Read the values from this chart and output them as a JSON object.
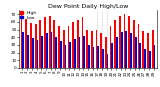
{
  "title": "Dew Point Daily High/Low",
  "ylim": [
    0,
    75
  ],
  "yticks": [
    0,
    10,
    20,
    30,
    40,
    50,
    60,
    70
  ],
  "high_color": "#ff0000",
  "low_color": "#0000cc",
  "background_color": "#ffffff",
  "highs": [
    73,
    64,
    59,
    57,
    62,
    67,
    68,
    62,
    55,
    50,
    55,
    60,
    63,
    66,
    50,
    48,
    50,
    45,
    40,
    55,
    62,
    68,
    70,
    68,
    62,
    57,
    48,
    45,
    50
  ],
  "lows": [
    47,
    43,
    39,
    36,
    42,
    46,
    47,
    40,
    35,
    30,
    34,
    38,
    40,
    42,
    30,
    27,
    29,
    24,
    18,
    33,
    40,
    47,
    48,
    45,
    40,
    33,
    25,
    22,
    30
  ],
  "n_days": 29,
  "bar_width": 0.38,
  "title_fontsize": 4.5,
  "tick_fontsize": 3.0,
  "legend_fontsize": 3.2,
  "dashed_lines": [
    16,
    17,
    18
  ]
}
